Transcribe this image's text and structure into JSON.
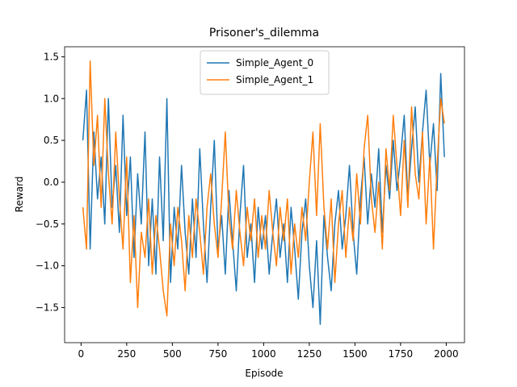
{
  "chart_data": {
    "type": "line",
    "title": "Prisoner's_dilemma",
    "x_label": "Episode",
    "y_label": "Reward",
    "x": [
      10,
      30,
      50,
      70,
      90,
      110,
      130,
      150,
      170,
      190,
      210,
      230,
      250,
      270,
      290,
      310,
      330,
      350,
      370,
      390,
      410,
      430,
      450,
      470,
      490,
      510,
      530,
      550,
      570,
      590,
      610,
      630,
      650,
      670,
      690,
      710,
      730,
      750,
      770,
      790,
      810,
      830,
      850,
      870,
      890,
      910,
      930,
      950,
      970,
      990,
      1010,
      1030,
      1050,
      1070,
      1090,
      1110,
      1130,
      1150,
      1170,
      1190,
      1210,
      1230,
      1250,
      1270,
      1290,
      1310,
      1330,
      1350,
      1370,
      1390,
      1410,
      1430,
      1450,
      1470,
      1490,
      1510,
      1530,
      1550,
      1570,
      1590,
      1610,
      1630,
      1650,
      1670,
      1690,
      1710,
      1730,
      1750,
      1770,
      1790,
      1810,
      1830,
      1850,
      1870,
      1890,
      1910,
      1930,
      1950,
      1970,
      1990
    ],
    "series": [
      {
        "name": "Simple_Agent_0",
        "color": "#1f77b4",
        "values": [
          0.5,
          1.1,
          -0.8,
          0.6,
          -0.2,
          0.3,
          -0.5,
          1.0,
          -0.3,
          0.2,
          -0.6,
          0.8,
          -0.4,
          0.3,
          -0.9,
          0.1,
          -0.5,
          0.6,
          -1.0,
          -0.2,
          -1.1,
          0.3,
          -0.7,
          1.0,
          -1.2,
          -0.3,
          -0.8,
          0.2,
          -0.6,
          -1.1,
          -0.2,
          -0.9,
          0.4,
          -0.5,
          -1.2,
          -0.3,
          0.5,
          -0.8,
          -0.4,
          -1.1,
          -0.1,
          -0.7,
          -1.3,
          -0.4,
          0.2,
          -0.9,
          -0.5,
          -1.2,
          -0.3,
          -0.8,
          -0.4,
          -1.1,
          -0.6,
          -0.2,
          -0.9,
          -0.5,
          -1.2,
          -0.3,
          -0.8,
          -1.4,
          -0.6,
          -0.2,
          -1.0,
          -1.5,
          -0.7,
          -1.7,
          -0.4,
          -0.9,
          -1.3,
          -0.5,
          -0.1,
          -0.8,
          -0.4,
          0.2,
          -0.6,
          -1.1,
          -0.2,
          0.3,
          -0.5,
          0.1,
          -0.3,
          0.4,
          -0.6,
          0.2,
          -0.2,
          0.5,
          -0.1,
          0.3,
          0.8,
          -0.2,
          0.4,
          0.9,
          0.0,
          0.6,
          1.1,
          0.2,
          0.7,
          -0.1,
          1.3,
          0.3
        ]
      },
      {
        "name": "Simple_Agent_1",
        "color": "#ff7f0e",
        "values": [
          -0.3,
          -0.8,
          1.45,
          0.2,
          0.8,
          -0.3,
          1.0,
          0.1,
          -0.5,
          0.6,
          -0.2,
          -0.8,
          0.3,
          -1.2,
          -0.4,
          -1.5,
          -0.6,
          -0.9,
          -0.2,
          -1.1,
          -0.4,
          -0.8,
          -1.3,
          -1.6,
          -0.5,
          -1.0,
          -0.3,
          -0.7,
          -1.3,
          -0.4,
          -0.9,
          -0.2,
          -0.6,
          -1.1,
          -0.3,
          0.1,
          -0.5,
          -0.9,
          -0.2,
          0.6,
          -0.4,
          -0.8,
          -0.1,
          -0.6,
          -1.0,
          -0.3,
          -0.7,
          -0.2,
          -0.9,
          -0.4,
          -0.8,
          -0.1,
          -0.6,
          -1.0,
          -0.3,
          -0.7,
          -0.2,
          -1.1,
          -0.5,
          -0.9,
          -0.3,
          -0.7,
          0.0,
          0.6,
          -0.4,
          0.7,
          -0.3,
          -0.8,
          -0.2,
          -1.2,
          -0.5,
          -0.1,
          -0.9,
          -0.3,
          -0.7,
          0.1,
          -0.5,
          0.4,
          0.8,
          -0.2,
          -0.6,
          0.0,
          -0.8,
          0.4,
          -0.1,
          0.8,
          0.2,
          -0.4,
          0.5,
          -0.3,
          0.9,
          0.1,
          -0.2,
          0.6,
          -0.5,
          0.3,
          -0.8,
          0.2,
          1.0,
          0.7
        ]
      }
    ],
    "xlim": [
      -90,
      2100
    ],
    "ylim": [
      -1.92,
      1.62
    ],
    "xticks": [
      0,
      250,
      500,
      750,
      1000,
      1250,
      1500,
      1750,
      2000
    ],
    "yticks": [
      {
        "value": -1.5,
        "label": "−1.5"
      },
      {
        "value": -1.0,
        "label": "−1.0"
      },
      {
        "value": -0.5,
        "label": "−0.5"
      },
      {
        "value": 0.0,
        "label": "0.0"
      },
      0.5,
      {
        "value": 1.0,
        "label": "1.0"
      },
      1.5
    ],
    "legend": "upper center"
  }
}
